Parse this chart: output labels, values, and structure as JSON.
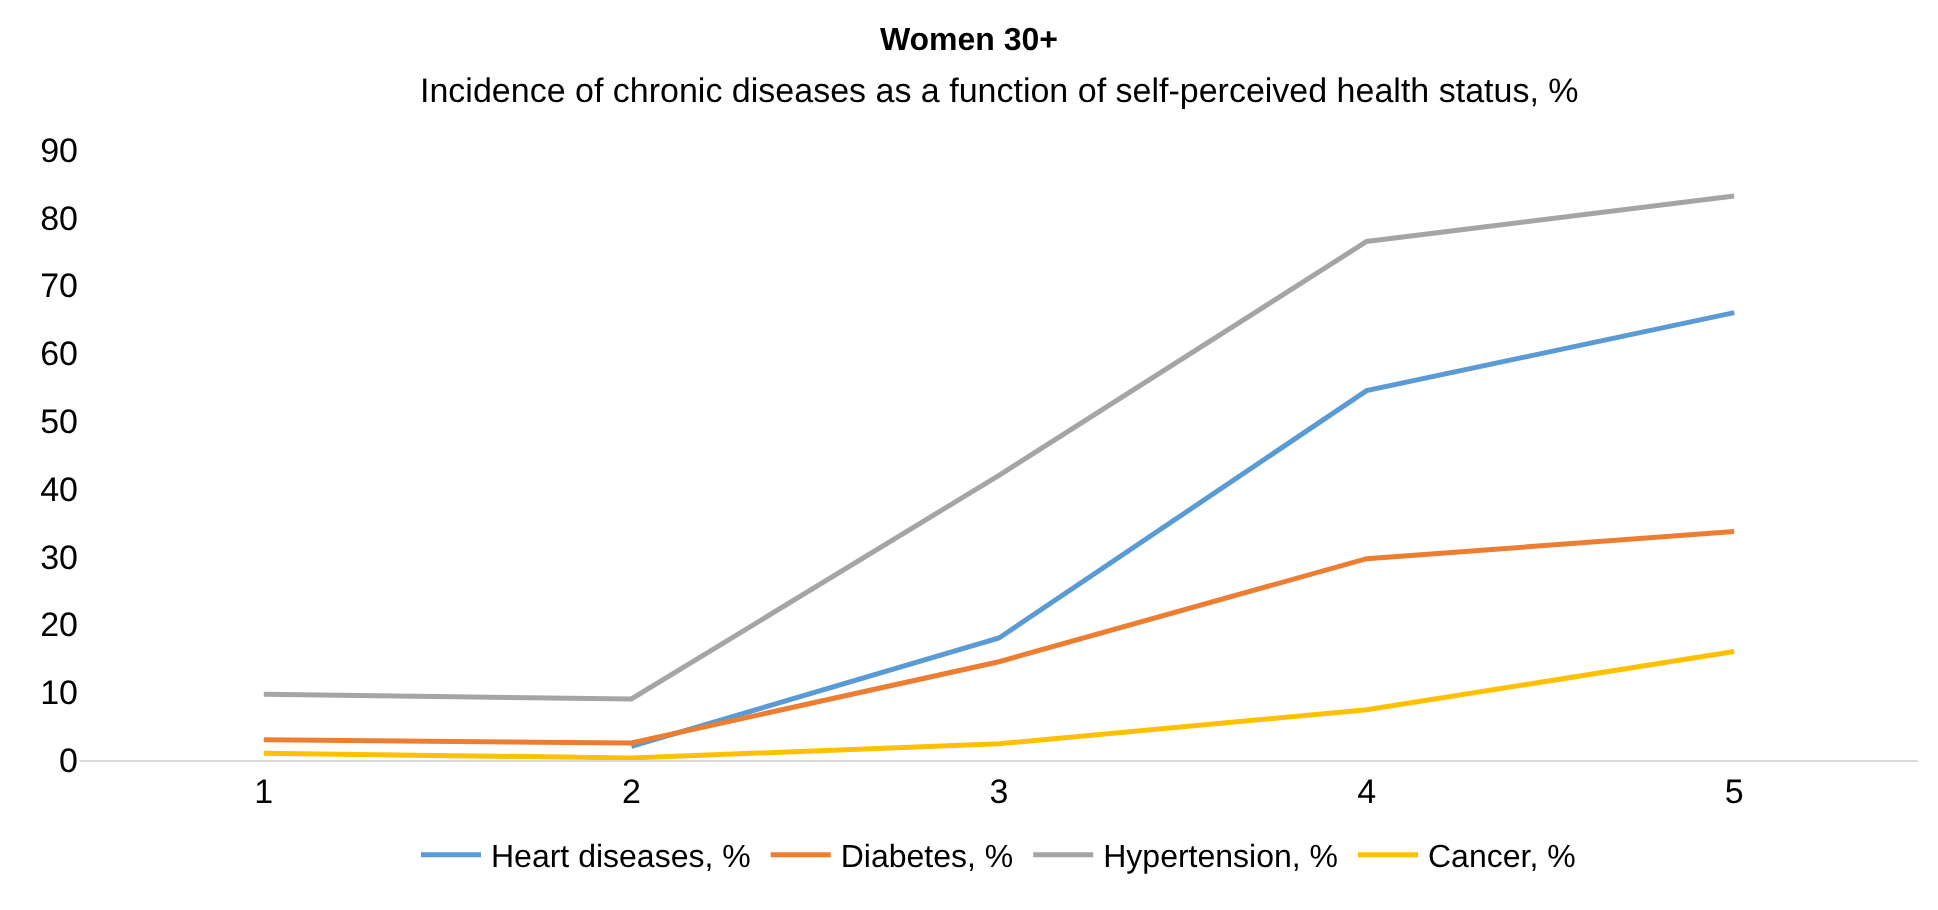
{
  "chart_data": {
    "type": "line",
    "title": "Women 30+",
    "subtitle": "Incidence of chronic diseases as a function of self-perceived health status, %",
    "categories": [
      "1",
      "2",
      "3",
      "4",
      "5"
    ],
    "series": [
      {
        "name": "Heart diseases, %",
        "color": "#5b9bd5",
        "values": [
          null,
          2,
          18,
          54.5,
          66
        ]
      },
      {
        "name": "Diabetes, %",
        "color": "#ed7d31",
        "values": [
          3,
          2.5,
          14.5,
          29.7,
          33.7
        ]
      },
      {
        "name": "Hypertension, %",
        "color": "#a5a5a5",
        "values": [
          9.7,
          9,
          42,
          76.5,
          83.2
        ]
      },
      {
        "name": "Cancer, %",
        "color": "#ffc000",
        "values": [
          1,
          0.3,
          2.4,
          7.4,
          16
        ]
      }
    ],
    "ylim": [
      0,
      90
    ],
    "yticks": [
      0,
      10,
      20,
      30,
      40,
      50,
      60,
      70,
      80,
      90
    ],
    "grid": false,
    "legend": "bottom",
    "marker": "none",
    "line_style": "solid"
  }
}
